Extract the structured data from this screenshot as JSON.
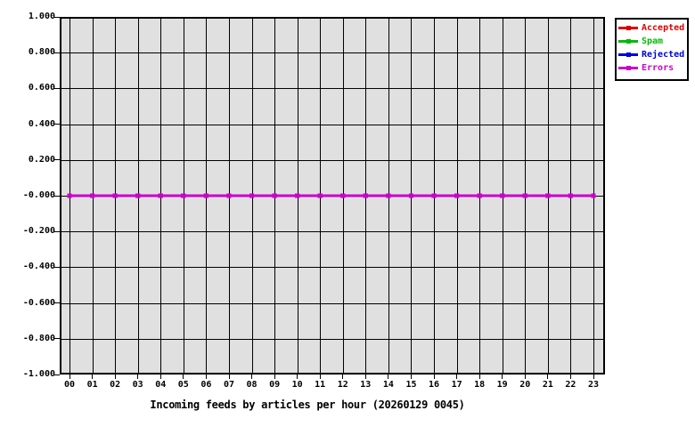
{
  "chart_data": {
    "type": "line",
    "title": "Incoming feeds by articles per hour (20260129 0045)",
    "xlabel": "",
    "ylabel": "",
    "x_ticks": [
      "00",
      "01",
      "02",
      "03",
      "04",
      "05",
      "06",
      "07",
      "08",
      "09",
      "10",
      "11",
      "12",
      "13",
      "14",
      "15",
      "16",
      "17",
      "18",
      "19",
      "20",
      "21",
      "22",
      "23"
    ],
    "y_ticks": [
      "1.000",
      "0.800",
      "0.600",
      "0.400",
      "0.200",
      "-0.000",
      "-0.200",
      "-0.400",
      "-0.600",
      "-0.800",
      "-1.000"
    ],
    "ylim": [
      -1.0,
      1.0
    ],
    "grid": true,
    "grid_color": "#000000",
    "plot_background": "#e0e0e0",
    "page_background": "#ffffff",
    "legend_position": "outside-top-right",
    "marker": "square",
    "series": [
      {
        "name": "Accepted",
        "color": "#dd0000",
        "values": [
          0,
          0,
          0,
          0,
          0,
          0,
          0,
          0,
          0,
          0,
          0,
          0,
          0,
          0,
          0,
          0,
          0,
          0,
          0,
          0,
          0,
          0,
          0,
          0
        ]
      },
      {
        "name": "Spam",
        "color": "#00bb00",
        "values": [
          0,
          0,
          0,
          0,
          0,
          0,
          0,
          0,
          0,
          0,
          0,
          0,
          0,
          0,
          0,
          0,
          0,
          0,
          0,
          0,
          0,
          0,
          0,
          0
        ]
      },
      {
        "name": "Rejected",
        "color": "#0000dd",
        "values": [
          0,
          0,
          0,
          0,
          0,
          0,
          0,
          0,
          0,
          0,
          0,
          0,
          0,
          0,
          0,
          0,
          0,
          0,
          0,
          0,
          0,
          0,
          0,
          0
        ]
      },
      {
        "name": "Errors",
        "color": "#cc00cc",
        "values": [
          0,
          0,
          0,
          0,
          0,
          0,
          0,
          0,
          0,
          0,
          0,
          0,
          0,
          0,
          0,
          0,
          0,
          0,
          0,
          0,
          0,
          0,
          0,
          0
        ]
      }
    ]
  }
}
